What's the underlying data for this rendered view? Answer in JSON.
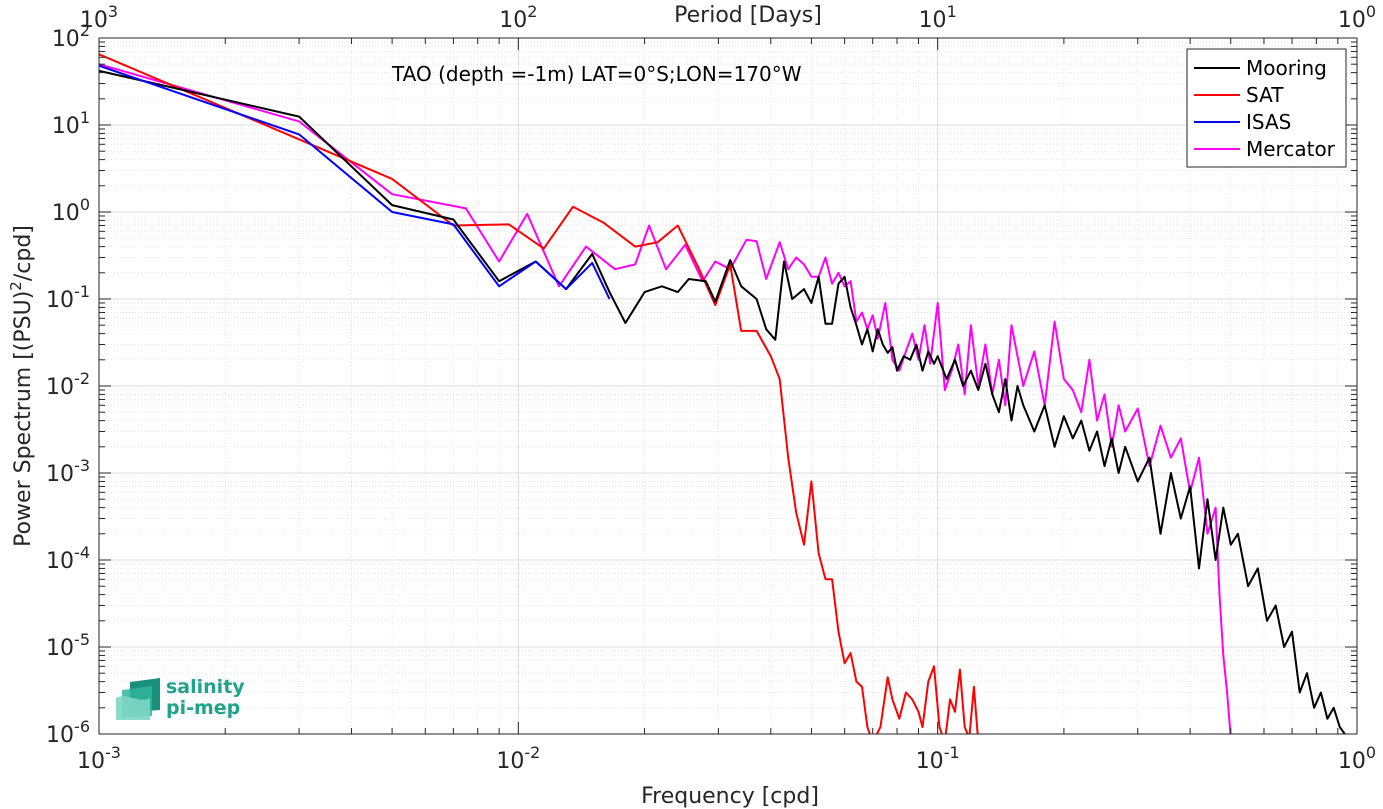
{
  "chart_data": {
    "type": "line",
    "title": "TAO (depth =-1m) LAT=0°S;LON=170°W",
    "xlabel": "Frequency [cpd]",
    "ylabel": "Power Spectrum [(PSU)²/cpd]",
    "top_xlabel": "Period [Days]",
    "xscale": "log",
    "yscale": "log",
    "xlim": [
      0.001,
      1
    ],
    "ylim": [
      1e-06,
      100
    ],
    "grid": true,
    "legend_position": "top-right",
    "x_ticks": [
      {
        "base": "10",
        "exp": "-3"
      },
      {
        "base": "10",
        "exp": "-2"
      },
      {
        "base": "10",
        "exp": "-1"
      },
      {
        "base": "10",
        "exp": "0"
      }
    ],
    "y_ticks": [
      {
        "base": "10",
        "exp": "-6"
      },
      {
        "base": "10",
        "exp": "-5"
      },
      {
        "base": "10",
        "exp": "-4"
      },
      {
        "base": "10",
        "exp": "-3"
      },
      {
        "base": "10",
        "exp": "-2"
      },
      {
        "base": "10",
        "exp": "-1"
      },
      {
        "base": "10",
        "exp": "0"
      },
      {
        "base": "10",
        "exp": "1"
      },
      {
        "base": "10",
        "exp": "2"
      }
    ],
    "top_ticks": [
      {
        "base": "10",
        "exp": "3"
      },
      {
        "base": "10",
        "exp": "2"
      },
      {
        "base": "10",
        "exp": "1"
      },
      {
        "base": "10",
        "exp": "0"
      }
    ],
    "series": [
      {
        "name": "Mooring",
        "color": "#000000",
        "points": [
          [
            0.001,
            42
          ],
          [
            0.003,
            12.5
          ],
          [
            0.005,
            1.2
          ],
          [
            0.007,
            0.82
          ],
          [
            0.009,
            0.16
          ],
          [
            0.011,
            0.27
          ],
          [
            0.013,
            0.13
          ],
          [
            0.015,
            0.33
          ],
          [
            0.0165,
            0.12
          ],
          [
            0.018,
            0.053
          ],
          [
            0.02,
            0.12
          ],
          [
            0.022,
            0.14
          ],
          [
            0.024,
            0.12
          ],
          [
            0.0255,
            0.17
          ],
          [
            0.028,
            0.16
          ],
          [
            0.0295,
            0.093
          ],
          [
            0.032,
            0.28
          ],
          [
            0.034,
            0.14
          ],
          [
            0.037,
            0.1
          ],
          [
            0.039,
            0.045
          ],
          [
            0.041,
            0.034
          ],
          [
            0.043,
            0.27
          ],
          [
            0.045,
            0.1
          ],
          [
            0.048,
            0.13
          ],
          [
            0.05,
            0.09
          ],
          [
            0.052,
            0.18
          ],
          [
            0.054,
            0.052
          ],
          [
            0.056,
            0.052
          ],
          [
            0.058,
            0.15
          ],
          [
            0.06,
            0.18
          ],
          [
            0.062,
            0.08
          ],
          [
            0.064,
            0.05
          ],
          [
            0.066,
            0.03
          ],
          [
            0.068,
            0.045
          ],
          [
            0.07,
            0.025
          ],
          [
            0.072,
            0.045
          ],
          [
            0.074,
            0.03
          ],
          [
            0.076,
            0.024
          ],
          [
            0.078,
            0.028
          ],
          [
            0.08,
            0.015
          ],
          [
            0.083,
            0.022
          ],
          [
            0.086,
            0.02
          ],
          [
            0.089,
            0.03
          ],
          [
            0.092,
            0.015
          ],
          [
            0.095,
            0.025
          ],
          [
            0.098,
            0.018
          ],
          [
            0.1,
            0.022
          ],
          [
            0.105,
            0.012
          ],
          [
            0.11,
            0.02
          ],
          [
            0.115,
            0.01
          ],
          [
            0.12,
            0.015
          ],
          [
            0.125,
            0.009
          ],
          [
            0.13,
            0.018
          ],
          [
            0.135,
            0.008
          ],
          [
            0.14,
            0.005
          ],
          [
            0.145,
            0.012
          ],
          [
            0.15,
            0.004
          ],
          [
            0.155,
            0.01
          ],
          [
            0.16,
            0.006
          ],
          [
            0.17,
            0.003
          ],
          [
            0.18,
            0.006
          ],
          [
            0.19,
            0.002
          ],
          [
            0.2,
            0.0045
          ],
          [
            0.21,
            0.0025
          ],
          [
            0.22,
            0.004
          ],
          [
            0.23,
            0.0018
          ],
          [
            0.24,
            0.003
          ],
          [
            0.25,
            0.0012
          ],
          [
            0.26,
            0.0025
          ],
          [
            0.27,
            0.001
          ],
          [
            0.28,
            0.002
          ],
          [
            0.3,
            0.0008
          ],
          [
            0.32,
            0.0015
          ],
          [
            0.34,
            0.0002
          ],
          [
            0.36,
            0.001
          ],
          [
            0.38,
            0.0003
          ],
          [
            0.4,
            0.0007
          ],
          [
            0.42,
            8e-05
          ],
          [
            0.44,
            0.0005
          ],
          [
            0.46,
            0.0001
          ],
          [
            0.48,
            0.0004
          ],
          [
            0.5,
            0.00015
          ],
          [
            0.52,
            0.0002
          ],
          [
            0.55,
            5e-05
          ],
          [
            0.58,
            8e-05
          ],
          [
            0.61,
            2e-05
          ],
          [
            0.64,
            3e-05
          ],
          [
            0.67,
            1e-05
          ],
          [
            0.7,
            1.5e-05
          ],
          [
            0.73,
            3e-06
          ],
          [
            0.76,
            5e-06
          ],
          [
            0.79,
            2e-06
          ],
          [
            0.82,
            3e-06
          ],
          [
            0.85,
            1.5e-06
          ],
          [
            0.88,
            2e-06
          ],
          [
            0.91,
            1.2e-06
          ],
          [
            0.95,
            9e-07
          ]
        ]
      },
      {
        "name": "SAT",
        "color": "#ff0000",
        "points": [
          [
            0.001,
            65
          ],
          [
            0.005,
            2.4
          ],
          [
            0.007,
            0.7
          ],
          [
            0.0095,
            0.72
          ],
          [
            0.0115,
            0.38
          ],
          [
            0.0135,
            1.15
          ],
          [
            0.016,
            0.75
          ],
          [
            0.019,
            0.4
          ],
          [
            0.0215,
            0.45
          ],
          [
            0.024,
            0.7
          ],
          [
            0.027,
            0.22
          ],
          [
            0.0295,
            0.085
          ],
          [
            0.032,
            0.25
          ],
          [
            0.034,
            0.043
          ],
          [
            0.037,
            0.043
          ],
          [
            0.04,
            0.022
          ],
          [
            0.042,
            0.012
          ],
          [
            0.044,
            0.0015
          ],
          [
            0.046,
            0.00035
          ],
          [
            0.048,
            0.00015
          ],
          [
            0.05,
            0.0008
          ],
          [
            0.052,
            0.00012
          ],
          [
            0.054,
            6e-05
          ],
          [
            0.056,
            6e-05
          ],
          [
            0.058,
            1.5e-05
          ],
          [
            0.06,
            6.5e-06
          ],
          [
            0.062,
            8.5e-06
          ],
          [
            0.064,
            4e-06
          ],
          [
            0.066,
            3.5e-06
          ],
          [
            0.068,
            1.2e-06
          ],
          [
            0.07,
            8e-07
          ],
          [
            0.073,
            1.2e-06
          ],
          [
            0.076,
            4.5e-06
          ],
          [
            0.078,
            2.5e-06
          ],
          [
            0.081,
            1.5e-06
          ],
          [
            0.084,
            3e-06
          ],
          [
            0.087,
            2.5e-06
          ],
          [
            0.09,
            1.8e-06
          ],
          [
            0.092,
            1.2e-06
          ],
          [
            0.095,
            4e-06
          ],
          [
            0.098,
            6e-06
          ],
          [
            0.101,
            1.2e-06
          ],
          [
            0.104,
            8e-07
          ],
          [
            0.107,
            2.5e-06
          ],
          [
            0.11,
            1.8e-06
          ],
          [
            0.113,
            5.5e-06
          ],
          [
            0.116,
            1.2e-06
          ],
          [
            0.119,
            9e-07
          ],
          [
            0.122,
            3.5e-06
          ],
          [
            0.125,
            8e-07
          ]
        ]
      },
      {
        "name": "ISAS",
        "color": "#0000ff",
        "points": [
          [
            0.001,
            48
          ],
          [
            0.003,
            7.8
          ],
          [
            0.005,
            1.0
          ],
          [
            0.007,
            0.72
          ],
          [
            0.009,
            0.14
          ],
          [
            0.011,
            0.27
          ],
          [
            0.013,
            0.13
          ],
          [
            0.015,
            0.26
          ],
          [
            0.0165,
            0.1
          ]
        ]
      },
      {
        "name": "Mercator",
        "color": "#ff00ff",
        "points": [
          [
            0.001,
            50
          ],
          [
            0.003,
            11
          ],
          [
            0.005,
            1.6
          ],
          [
            0.0075,
            1.1
          ],
          [
            0.009,
            0.27
          ],
          [
            0.0105,
            0.95
          ],
          [
            0.0125,
            0.14
          ],
          [
            0.0145,
            0.4
          ],
          [
            0.017,
            0.22
          ],
          [
            0.019,
            0.25
          ],
          [
            0.0205,
            0.7
          ],
          [
            0.0225,
            0.22
          ],
          [
            0.025,
            0.42
          ],
          [
            0.0275,
            0.16
          ],
          [
            0.0295,
            0.27
          ],
          [
            0.032,
            0.22
          ],
          [
            0.035,
            0.48
          ],
          [
            0.037,
            0.46
          ],
          [
            0.039,
            0.17
          ],
          [
            0.042,
            0.45
          ],
          [
            0.044,
            0.22
          ],
          [
            0.046,
            0.3
          ],
          [
            0.048,
            0.25
          ],
          [
            0.05,
            0.18
          ],
          [
            0.052,
            0.18
          ],
          [
            0.054,
            0.3
          ],
          [
            0.056,
            0.15
          ],
          [
            0.058,
            0.2
          ],
          [
            0.06,
            0.14
          ],
          [
            0.062,
            0.16
          ],
          [
            0.064,
            0.055
          ],
          [
            0.066,
            0.07
          ],
          [
            0.068,
            0.045
          ],
          [
            0.07,
            0.065
          ],
          [
            0.072,
            0.035
          ],
          [
            0.075,
            0.09
          ],
          [
            0.078,
            0.02
          ],
          [
            0.081,
            0.015
          ],
          [
            0.084,
            0.025
          ],
          [
            0.087,
            0.04
          ],
          [
            0.09,
            0.02
          ],
          [
            0.093,
            0.05
          ],
          [
            0.096,
            0.018
          ],
          [
            0.1,
            0.09
          ],
          [
            0.104,
            0.009
          ],
          [
            0.108,
            0.015
          ],
          [
            0.112,
            0.03
          ],
          [
            0.116,
            0.008
          ],
          [
            0.12,
            0.05
          ],
          [
            0.125,
            0.01
          ],
          [
            0.13,
            0.03
          ],
          [
            0.135,
            0.008
          ],
          [
            0.14,
            0.02
          ],
          [
            0.145,
            0.006
          ],
          [
            0.15,
            0.05
          ],
          [
            0.16,
            0.01
          ],
          [
            0.17,
            0.025
          ],
          [
            0.18,
            0.006
          ],
          [
            0.19,
            0.055
          ],
          [
            0.2,
            0.012
          ],
          [
            0.21,
            0.009
          ],
          [
            0.22,
            0.005
          ],
          [
            0.23,
            0.02
          ],
          [
            0.24,
            0.004
          ],
          [
            0.25,
            0.008
          ],
          [
            0.26,
            0.002
          ],
          [
            0.27,
            0.006
          ],
          [
            0.28,
            0.003
          ],
          [
            0.3,
            0.0055
          ],
          [
            0.32,
            0.0012
          ],
          [
            0.34,
            0.0035
          ],
          [
            0.36,
            0.0015
          ],
          [
            0.38,
            0.0025
          ],
          [
            0.4,
            0.0006
          ],
          [
            0.42,
            0.0015
          ],
          [
            0.44,
            0.0002
          ],
          [
            0.46,
            0.0004
          ],
          [
            0.47,
            4e-05
          ],
          [
            0.48,
            8e-06
          ],
          [
            0.49,
            3e-06
          ],
          [
            0.5,
            9e-07
          ]
        ]
      }
    ]
  },
  "logo": {
    "line1": "salinity",
    "line2": "pi-mep"
  }
}
